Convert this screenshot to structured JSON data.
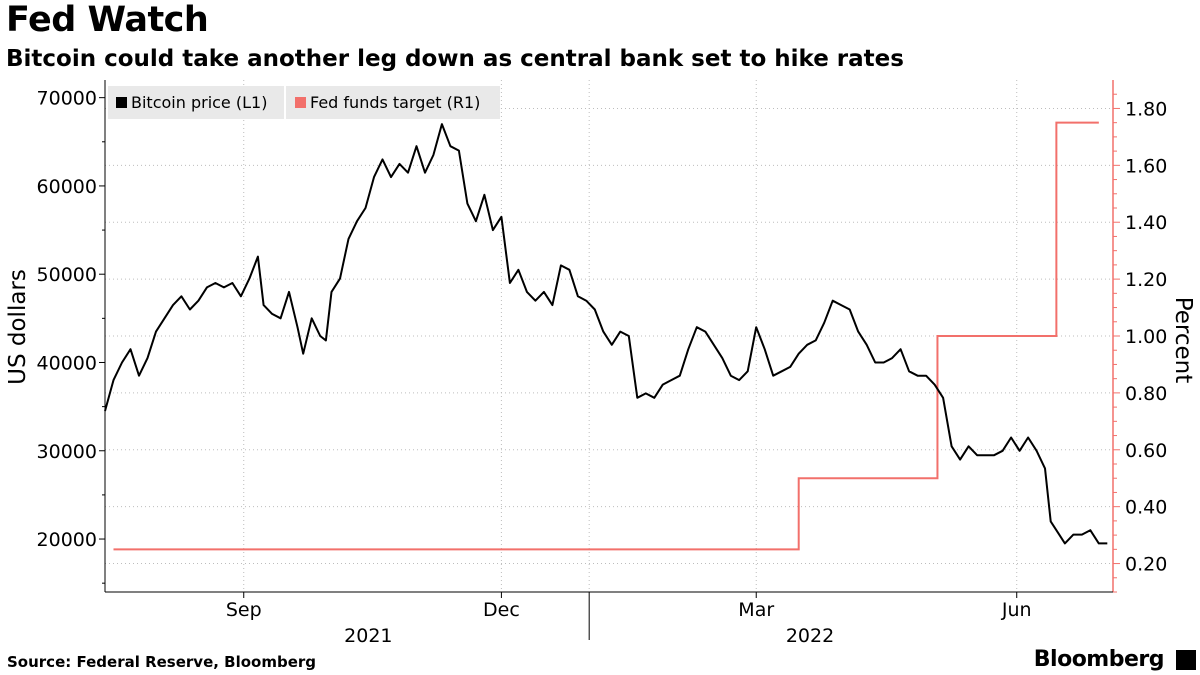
{
  "header": {
    "title": "Fed Watch",
    "subtitle": "Bitcoin could take another leg down as central bank set to hike rates"
  },
  "footer": {
    "source": "Source: Federal Reserve, Bloomberg",
    "brand": "Bloomberg"
  },
  "colors": {
    "bitcoin": "#000000",
    "fed": "#f2706b",
    "grid": "#bdbdbd",
    "right_axis": "#f2706b",
    "legend_bg": "#e9e9e9"
  },
  "chart_data": {
    "type": "line",
    "title": "Fed Watch",
    "subtitle": "Bitcoin could take another leg down as central bank set to hike rates",
    "ylabel": "US dollars",
    "y2label": "Percent",
    "ylim": [
      14000,
      72000
    ],
    "y2lim": [
      0.1,
      1.9
    ],
    "y_ticks": [
      20000,
      30000,
      40000,
      50000,
      60000,
      70000
    ],
    "y2_ticks": [
      0.2,
      0.4,
      0.6,
      0.8,
      1.0,
      1.2,
      1.4,
      1.6,
      1.8
    ],
    "y2_tick_labels": [
      "0.20",
      "0.40",
      "0.60",
      "0.80",
      "1.00",
      "1.20",
      "1.40",
      "1.60",
      "1.80"
    ],
    "xlim": [
      "2021-07-14",
      "2022-07-05"
    ],
    "x_ticks": [
      {
        "date": "2021-09-01",
        "label": "Sep"
      },
      {
        "date": "2021-12-01",
        "label": "Dec"
      },
      {
        "date": "2022-03-01",
        "label": "Mar"
      },
      {
        "date": "2022-06-01",
        "label": "Jun"
      }
    ],
    "year_labels": [
      {
        "label": "2021",
        "date": "2021-10-15"
      },
      {
        "label": "2022",
        "date": "2022-03-20"
      }
    ],
    "year_dividers": [
      "2022-01-01"
    ],
    "grid": true,
    "legend_position": "top-left",
    "series": [
      {
        "name": "Bitcoin price (L1)",
        "axis": "left",
        "x": [
          "2021-07-14",
          "2021-07-17",
          "2021-07-20",
          "2021-07-23",
          "2021-07-26",
          "2021-07-29",
          "2021-08-01",
          "2021-08-04",
          "2021-08-07",
          "2021-08-10",
          "2021-08-13",
          "2021-08-16",
          "2021-08-19",
          "2021-08-22",
          "2021-08-25",
          "2021-08-28",
          "2021-08-31",
          "2021-09-03",
          "2021-09-06",
          "2021-09-08",
          "2021-09-11",
          "2021-09-14",
          "2021-09-17",
          "2021-09-20",
          "2021-09-22",
          "2021-09-25",
          "2021-09-28",
          "2021-09-30",
          "2021-10-02",
          "2021-10-05",
          "2021-10-08",
          "2021-10-11",
          "2021-10-14",
          "2021-10-17",
          "2021-10-20",
          "2021-10-23",
          "2021-10-26",
          "2021-10-29",
          "2021-11-01",
          "2021-11-04",
          "2021-11-07",
          "2021-11-10",
          "2021-11-13",
          "2021-11-16",
          "2021-11-19",
          "2021-11-22",
          "2021-11-25",
          "2021-11-28",
          "2021-12-01",
          "2021-12-04",
          "2021-12-07",
          "2021-12-10",
          "2021-12-13",
          "2021-12-16",
          "2021-12-19",
          "2021-12-22",
          "2021-12-25",
          "2021-12-28",
          "2021-12-31",
          "2022-01-03",
          "2022-01-06",
          "2022-01-09",
          "2022-01-12",
          "2022-01-15",
          "2022-01-18",
          "2022-01-21",
          "2022-01-24",
          "2022-01-27",
          "2022-01-30",
          "2022-02-02",
          "2022-02-05",
          "2022-02-08",
          "2022-02-11",
          "2022-02-14",
          "2022-02-17",
          "2022-02-20",
          "2022-02-23",
          "2022-02-26",
          "2022-03-01",
          "2022-03-04",
          "2022-03-07",
          "2022-03-10",
          "2022-03-13",
          "2022-03-16",
          "2022-03-19",
          "2022-03-22",
          "2022-03-25",
          "2022-03-28",
          "2022-03-31",
          "2022-04-03",
          "2022-04-06",
          "2022-04-09",
          "2022-04-12",
          "2022-04-15",
          "2022-04-18",
          "2022-04-21",
          "2022-04-24",
          "2022-04-27",
          "2022-04-30",
          "2022-05-03",
          "2022-05-06",
          "2022-05-09",
          "2022-05-12",
          "2022-05-15",
          "2022-05-18",
          "2022-05-21",
          "2022-05-24",
          "2022-05-27",
          "2022-05-30",
          "2022-06-02",
          "2022-06-05",
          "2022-06-08",
          "2022-06-11",
          "2022-06-13",
          "2022-06-16",
          "2022-06-18",
          "2022-06-21",
          "2022-06-24",
          "2022-06-27",
          "2022-06-30",
          "2022-07-03"
        ],
        "values": [
          34500,
          38000,
          40000,
          41500,
          38500,
          40500,
          43500,
          45000,
          46500,
          47500,
          46000,
          47000,
          48500,
          49000,
          48500,
          49000,
          47500,
          49500,
          52000,
          46500,
          45500,
          45000,
          48000,
          44000,
          41000,
          45000,
          43000,
          42500,
          48000,
          49500,
          54000,
          56000,
          57500,
          61000,
          63000,
          61000,
          62500,
          61500,
          64500,
          61500,
          63500,
          67000,
          64500,
          64000,
          58000,
          56000,
          59000,
          55000,
          56500,
          49000,
          50500,
          48000,
          47000,
          48000,
          46500,
          51000,
          50500,
          47500,
          47000,
          46000,
          43500,
          42000,
          43500,
          43000,
          36000,
          36500,
          36000,
          37500,
          38000,
          38500,
          41500,
          44000,
          43500,
          42000,
          40500,
          38500,
          38000,
          39000,
          44000,
          41500,
          38500,
          39000,
          39500,
          41000,
          42000,
          42500,
          44500,
          47000,
          46500,
          46000,
          43500,
          42000,
          40000,
          40000,
          40500,
          41500,
          39000,
          38500,
          38500,
          37500,
          36000,
          30500,
          29000,
          30500,
          29500,
          29500,
          29500,
          30000,
          31500,
          30000,
          31500,
          30000,
          28000,
          22000,
          20500,
          19500,
          20500,
          20500,
          21000,
          19500,
          19500
        ]
      },
      {
        "name": "Fed funds target (R1)",
        "axis": "right",
        "step": true,
        "x": [
          "2021-07-17",
          "2022-03-16",
          "2022-05-04",
          "2022-06-15",
          "2022-06-30"
        ],
        "values": [
          0.25,
          0.5,
          1.0,
          1.75,
          1.75
        ]
      }
    ]
  }
}
